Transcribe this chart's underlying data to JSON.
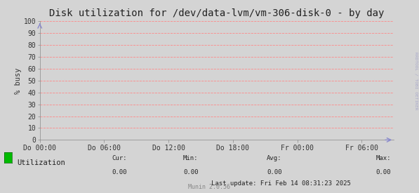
{
  "title": "Disk utilization for /dev/data-lvm/vm-306-disk-0 - by day",
  "ylabel": "% busy",
  "background_color": "#d4d4d4",
  "plot_bg_color": "#d4d4d4",
  "grid_color": "#ff8888",
  "line_color": "#00cc00",
  "ylim": [
    0,
    100
  ],
  "yticks": [
    0,
    10,
    20,
    30,
    40,
    50,
    60,
    70,
    80,
    90,
    100
  ],
  "xtick_labels": [
    "Do 00:00",
    "Do 06:00",
    "Do 12:00",
    "Do 18:00",
    "Fr 00:00",
    "Fr 06:00"
  ],
  "xtick_positions": [
    0,
    6,
    12,
    18,
    24,
    30
  ],
  "xlim": [
    0,
    33
  ],
  "legend_label": "Utilization",
  "legend_color": "#00bb00",
  "cur_val": "0.00",
  "min_val": "0.00",
  "avg_val": "0.00",
  "max_val": "0.00",
  "last_update": "Last update: Fri Feb 14 08:31:23 2025",
  "munin_version": "Munin 2.0.56",
  "rrdtool_text": "RRDTOOL / TOBI OETIKER",
  "title_fontsize": 10,
  "axis_fontsize": 7,
  "ylabel_fontsize": 7.5,
  "legend_fontsize": 7.5,
  "small_fontsize": 6.5,
  "munin_fontsize": 6
}
